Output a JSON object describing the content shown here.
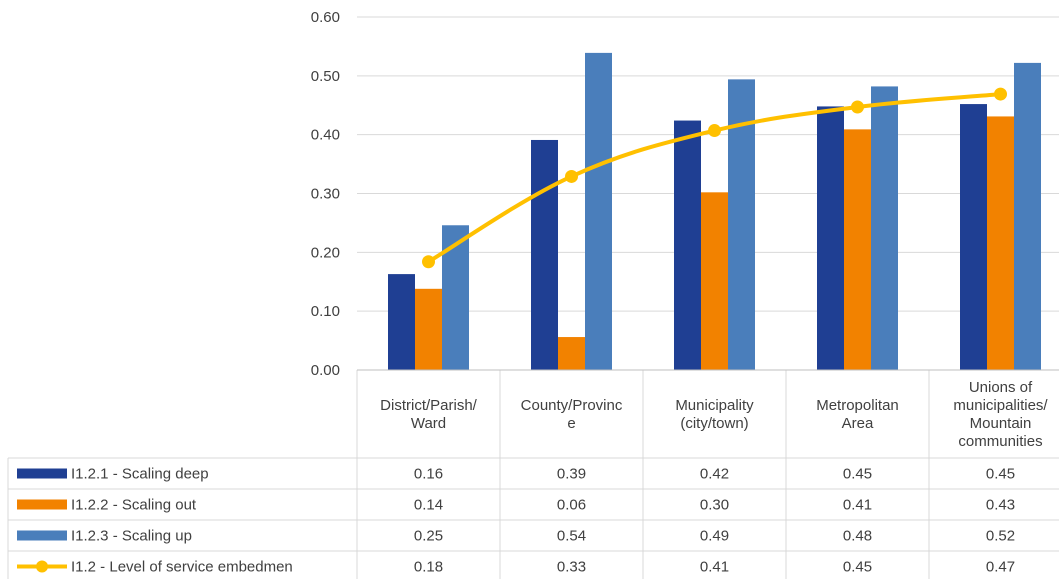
{
  "chart_data": {
    "type": "bar",
    "ylim": [
      0,
      0.6
    ],
    "yticks": [
      "0.00",
      "0.10",
      "0.20",
      "0.30",
      "0.40",
      "0.50",
      "0.60"
    ],
    "grid": true,
    "legend_placement": "data-table-left",
    "categories": [
      [
        "District/Parish/",
        "Ward"
      ],
      [
        "County/Provinc",
        "e"
      ],
      [
        "Municipality",
        "(city/town)"
      ],
      [
        "Metropolitan",
        "Area"
      ],
      [
        "Unions of",
        "municipalities/",
        "Mountain",
        "communities"
      ]
    ],
    "series": [
      {
        "name": "I1.2.1 - Scaling deep",
        "type": "bar",
        "color": "#1F3F93",
        "values": [
          0.163,
          0.391,
          0.424,
          0.448,
          0.452
        ],
        "labels": [
          "0.16",
          "0.39",
          "0.42",
          "0.45",
          "0.45"
        ]
      },
      {
        "name": "I1.2.2 - Scaling out",
        "type": "bar",
        "color": "#F28200",
        "values": [
          0.138,
          0.056,
          0.302,
          0.409,
          0.431
        ],
        "labels": [
          "0.14",
          "0.06",
          "0.30",
          "0.41",
          "0.43"
        ]
      },
      {
        "name": "I1.2.3 - Scaling up",
        "type": "bar",
        "color": "#4A7EBB",
        "values": [
          0.246,
          0.539,
          0.494,
          0.482,
          0.522
        ],
        "labels": [
          "0.25",
          "0.54",
          "0.49",
          "0.48",
          "0.52"
        ]
      },
      {
        "name": "I1.2 - Level of service embedmen",
        "type": "line",
        "color": "#FFC000",
        "values": [
          0.184,
          0.329,
          0.407,
          0.447,
          0.469
        ],
        "labels": [
          "0.18",
          "0.33",
          "0.41",
          "0.45",
          "0.47"
        ]
      }
    ]
  }
}
